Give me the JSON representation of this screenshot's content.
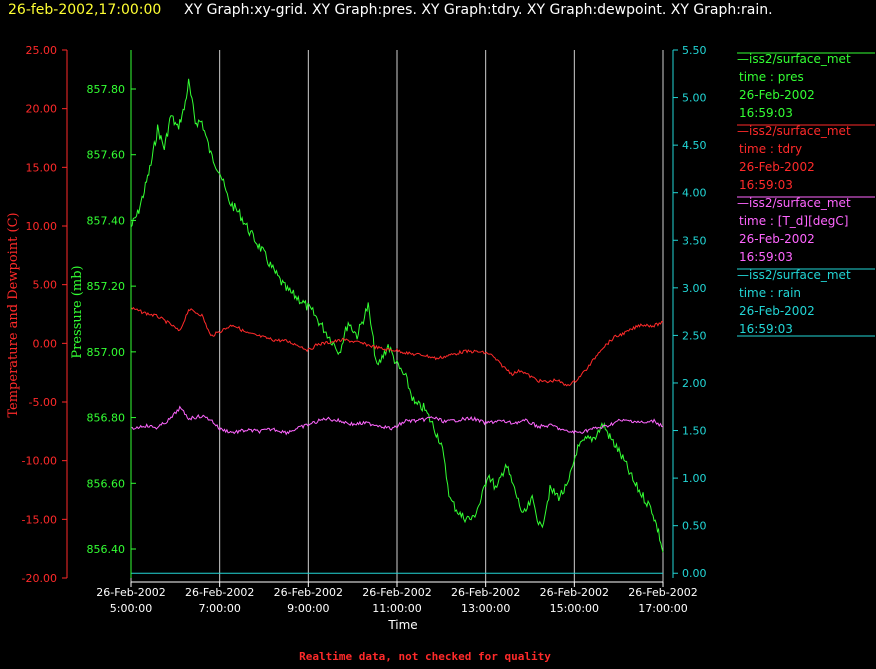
{
  "header": {
    "timestamp": "26-feb-2002,17:00:00",
    "graph_list": "XY Graph:xy-grid.  XY Graph:pres.  XY Graph:tdry.  XY Graph:dewpoint.  XY Graph:rain."
  },
  "footer": {
    "note": "Realtime data, not checked for quality"
  },
  "colors": {
    "pres": "#33ff33",
    "tdry": "#ff2a2a",
    "dewpoint": "#ff66ff",
    "rain": "#22d6d6",
    "grid": "#cfcfcf"
  },
  "chart_data": {
    "type": "line",
    "xlabel": "Time",
    "x_ticks": [
      [
        "26-Feb-2002",
        "5:00:00"
      ],
      [
        "26-Feb-2002",
        "7:00:00"
      ],
      [
        "26-Feb-2002",
        "9:00:00"
      ],
      [
        "26-Feb-2002",
        "11:00:00"
      ],
      [
        "26-Feb-2002",
        "13:00:00"
      ],
      [
        "26-Feb-2002",
        "15:00:00"
      ],
      [
        "26-Feb-2002",
        "17:00:00"
      ]
    ],
    "xlim_hours": [
      5,
      17
    ],
    "grid": "vertical lines at tick hours",
    "axes": {
      "temperature": {
        "label": "Temperature and Dewpoint (C)",
        "ylim": [
          -20,
          25
        ],
        "ticks": [
          "25.00",
          "20.00",
          "15.00",
          "10.00",
          "5.00",
          "0.00",
          "-5.00",
          "-10.00",
          "-15.00",
          "-20.00"
        ]
      },
      "pressure": {
        "label": "Pressure (mb)",
        "ylim": [
          856.3,
          857.9
        ],
        "ticks": [
          "857.80",
          "857.60",
          "857.40",
          "857.20",
          "857.00",
          "856.80",
          "856.60",
          "856.40"
        ]
      },
      "rain": {
        "ylim": [
          -0.05,
          5.5
        ],
        "ticks": [
          "5.50",
          "5.00",
          "4.50",
          "4.00",
          "3.50",
          "3.00",
          "2.50",
          "2.00",
          "1.50",
          "1.00",
          "0.50",
          "0.00"
        ]
      }
    },
    "legend": {
      "placement": "right",
      "entries": [
        {
          "key": "pres",
          "lines": [
            "—iss2/surface_met",
            "time : pres",
            "26-Feb-2002",
            "16:59:03"
          ]
        },
        {
          "key": "tdry",
          "lines": [
            "—iss2/surface_met",
            "time : tdry",
            "26-Feb-2002",
            "16:59:03"
          ]
        },
        {
          "key": "dewpoint",
          "lines": [
            "—iss2/surface_met",
            "time : [T_d][degC]",
            "26-Feb-2002",
            "16:59:03"
          ]
        },
        {
          "key": "rain",
          "lines": [
            "—iss2/surface_met",
            "time : rain",
            "26-Feb-2002",
            "16:59:03"
          ]
        }
      ]
    },
    "series": [
      {
        "key": "pres",
        "axis": "pressure",
        "hours": [
          5.0,
          5.15,
          5.3,
          5.45,
          5.6,
          5.75,
          5.9,
          6.05,
          6.2,
          6.3,
          6.45,
          6.6,
          6.8,
          7.0,
          7.2,
          7.45,
          7.7,
          7.95,
          8.2,
          8.5,
          8.8,
          9.1,
          9.4,
          9.7,
          9.9,
          10.1,
          10.35,
          10.55,
          10.8,
          11.0,
          11.2,
          11.4,
          11.6,
          11.8,
          12.0,
          12.2,
          12.45,
          12.7,
          12.9,
          13.05,
          13.25,
          13.45,
          13.65,
          13.85,
          14.05,
          14.25,
          14.45,
          14.65,
          14.85,
          15.05,
          15.25,
          15.45,
          15.65,
          15.8,
          15.95,
          16.15,
          16.35,
          16.55,
          16.75,
          16.9,
          17.0
        ],
        "values": [
          857.38,
          857.42,
          857.49,
          857.57,
          857.68,
          857.62,
          857.72,
          857.68,
          857.74,
          857.82,
          857.7,
          857.7,
          857.6,
          857.55,
          857.46,
          857.42,
          857.36,
          857.31,
          857.25,
          857.19,
          857.16,
          857.12,
          857.06,
          857.0,
          857.09,
          857.05,
          857.14,
          856.95,
          857.02,
          856.96,
          856.92,
          856.84,
          856.83,
          856.78,
          856.72,
          856.55,
          856.5,
          856.49,
          856.55,
          856.63,
          856.58,
          856.66,
          856.58,
          856.5,
          856.55,
          856.46,
          856.58,
          856.56,
          856.59,
          856.7,
          856.73,
          856.74,
          856.78,
          856.74,
          856.71,
          856.66,
          856.6,
          856.56,
          856.52,
          856.45,
          856.39
        ]
      },
      {
        "key": "tdry",
        "axis": "temperature",
        "hours": [
          5.0,
          5.3,
          5.6,
          5.9,
          6.1,
          6.3,
          6.6,
          6.8,
          7.0,
          7.3,
          7.6,
          7.9,
          8.2,
          8.5,
          8.8,
          9.0,
          9.2,
          9.5,
          9.8,
          10.1,
          10.4,
          10.7,
          11.0,
          11.3,
          11.6,
          11.9,
          12.2,
          12.5,
          12.8,
          13.1,
          13.4,
          13.6,
          13.8,
          14.0,
          14.2,
          14.4,
          14.6,
          14.8,
          15.0,
          15.3,
          15.6,
          15.9,
          16.2,
          16.5,
          16.8,
          17.0
        ],
        "values": [
          3.0,
          2.6,
          2.3,
          1.6,
          1.0,
          2.9,
          2.4,
          0.6,
          1.0,
          1.6,
          0.9,
          0.6,
          0.3,
          0.2,
          -0.2,
          -0.6,
          -0.1,
          0.1,
          0.3,
          0.1,
          -0.2,
          -0.5,
          -0.6,
          -0.9,
          -1.0,
          -1.3,
          -1.0,
          -0.7,
          -0.7,
          -0.9,
          -2.0,
          -2.6,
          -2.3,
          -2.8,
          -3.2,
          -3.3,
          -3.1,
          -3.6,
          -3.3,
          -2.1,
          -0.5,
          0.5,
          1.0,
          1.6,
          1.5,
          1.8
        ]
      },
      {
        "key": "dewpoint",
        "axis": "temperature",
        "hours": [
          5.0,
          5.3,
          5.6,
          5.9,
          6.1,
          6.3,
          6.6,
          6.8,
          7.0,
          7.3,
          7.6,
          7.9,
          8.2,
          8.5,
          8.8,
          9.1,
          9.4,
          9.7,
          10.0,
          10.3,
          10.6,
          10.9,
          11.2,
          11.5,
          11.8,
          12.1,
          12.4,
          12.7,
          13.0,
          13.3,
          13.6,
          13.9,
          14.2,
          14.5,
          14.8,
          15.1,
          15.4,
          15.7,
          16.0,
          16.3,
          16.6,
          16.8,
          17.0
        ],
        "values": [
          -7.3,
          -7.0,
          -7.2,
          -6.4,
          -5.5,
          -6.4,
          -6.2,
          -6.5,
          -7.3,
          -7.6,
          -7.4,
          -7.5,
          -7.3,
          -7.6,
          -7.2,
          -6.8,
          -6.4,
          -6.6,
          -6.9,
          -6.8,
          -7.0,
          -7.3,
          -6.6,
          -6.6,
          -6.3,
          -6.7,
          -6.5,
          -6.4,
          -6.8,
          -6.6,
          -6.8,
          -6.6,
          -7.1,
          -7.0,
          -7.5,
          -7.6,
          -7.3,
          -7.1,
          -6.6,
          -6.6,
          -6.8,
          -6.6,
          -7.1
        ]
      },
      {
        "key": "rain",
        "axis": "rain",
        "hours": [
          5.0,
          17.0
        ],
        "values": [
          0.0,
          0.0
        ]
      }
    ]
  }
}
